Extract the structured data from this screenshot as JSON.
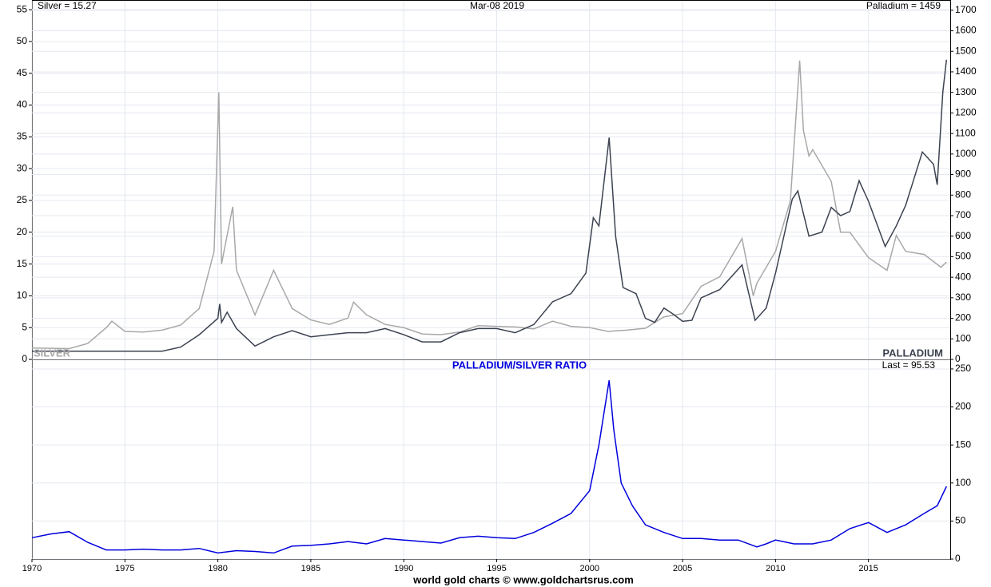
{
  "chart_data": [
    {
      "type": "line",
      "annotations": [
        "Silver = 15.27",
        "Mar-08  2019",
        "Palladium = 1459"
      ],
      "xlim": [
        1970,
        2019.4
      ],
      "ylim": [
        0,
        56.4
      ],
      "yticks": [
        0,
        5,
        10,
        15,
        20,
        25,
        30,
        35,
        40,
        45,
        50,
        55
      ],
      "y2lim": [
        0,
        1746
      ],
      "y2ticks": [
        0,
        100,
        200,
        300,
        400,
        500,
        600,
        700,
        800,
        900,
        1000,
        1100,
        1200,
        1300,
        1400,
        1500,
        1600,
        1700
      ],
      "grid": true,
      "series": [
        {
          "name": "SILVER",
          "color": "#a8a8a8",
          "axis": "y",
          "x": [
            1970,
            1972,
            1973,
            1974,
            1974.3,
            1975,
            1976,
            1977,
            1978,
            1979,
            1979.8,
            1980.05,
            1980.2,
            1980.8,
            1981,
            1982,
            1983,
            1983.5,
            1984,
            1985,
            1986,
            1987,
            1987.3,
            1988,
            1989,
            1990,
            1991,
            1992,
            1993,
            1994,
            1995,
            1996,
            1997,
            1998,
            1999,
            2000,
            2001,
            2002,
            2003,
            2004,
            2005,
            2006,
            2007,
            2008.2,
            2008.8,
            2009,
            2010,
            2010.8,
            2011.3,
            2011.5,
            2011.8,
            2012,
            2013,
            2013.5,
            2014,
            2015,
            2016,
            2016.5,
            2017,
            2018,
            2018.9,
            2019.2
          ],
          "values": [
            1.8,
            1.7,
            2.5,
            5,
            6,
            4.4,
            4.3,
            4.6,
            5.4,
            8,
            17,
            42,
            15,
            24,
            14,
            7,
            14,
            11,
            8,
            6.2,
            5.5,
            6.5,
            9,
            7,
            5.5,
            5,
            4,
            3.9,
            4.3,
            5.3,
            5.2,
            5.1,
            4.8,
            6,
            5.2,
            5,
            4.4,
            4.6,
            4.9,
            6.7,
            7.2,
            11.5,
            13,
            19,
            10,
            12,
            17,
            25,
            47,
            36,
            32,
            33,
            28,
            20,
            20,
            16,
            14,
            19.5,
            17,
            16.5,
            14.5,
            15.3
          ]
        },
        {
          "name": "PALLADIUM",
          "color": "#3c4250",
          "axis": "y2",
          "x": [
            1970,
            1977,
            1978,
            1979,
            1980,
            1980.1,
            1980.2,
            1980.5,
            1981,
            1982,
            1983,
            1984,
            1985,
            1986,
            1987,
            1988,
            1989,
            1990,
            1991,
            1992,
            1993,
            1994,
            1995,
            1996,
            1997,
            1998,
            1999,
            1999.8,
            2000.2,
            2000.5,
            2001.05,
            2001.4,
            2001.8,
            2002.5,
            2003,
            2003.5,
            2004,
            2004.5,
            2005,
            2005.5,
            2006,
            2007,
            2008.2,
            2008.9,
            2009.5,
            2010,
            2010.9,
            2011.2,
            2011.8,
            2012.5,
            2013,
            2013.5,
            2014,
            2014.5,
            2015,
            2015.9,
            2016.5,
            2017,
            2017.9,
            2018.5,
            2018.7,
            2019,
            2019.2
          ],
          "values": [
            40,
            40,
            60,
            120,
            200,
            270,
            180,
            230,
            150,
            65,
            110,
            140,
            110,
            120,
            130,
            130,
            150,
            120,
            85,
            85,
            130,
            150,
            150,
            130,
            170,
            280,
            320,
            420,
            690,
            650,
            1080,
            600,
            350,
            320,
            200,
            180,
            250,
            220,
            185,
            190,
            300,
            340,
            460,
            190,
            250,
            420,
            780,
            820,
            600,
            620,
            740,
            700,
            720,
            870,
            770,
            550,
            650,
            750,
            1010,
            950,
            850,
            1300,
            1459
          ]
        }
      ]
    },
    {
      "type": "line",
      "title": "PALLADIUM/SILVER RATIO",
      "annotations": [
        "Last = 95.53"
      ],
      "xlim": [
        1970,
        2019.4
      ],
      "xticks": [
        1970,
        1975,
        1980,
        1985,
        1990,
        1995,
        2000,
        2005,
        2010,
        2015
      ],
      "ylim": [
        0,
        261.5
      ],
      "yticks": [
        0,
        50,
        100,
        150,
        200,
        250
      ],
      "grid": true,
      "series": [
        {
          "color": "#0000dd",
          "x": [
            1970,
            1971,
            1972,
            1973,
            1974,
            1975,
            1976,
            1977,
            1978,
            1979,
            1980,
            1981,
            1982,
            1983,
            1984,
            1985,
            1986,
            1987,
            1988,
            1989,
            1990,
            1991,
            1992,
            1993,
            1994,
            1995,
            1996,
            1997,
            1998,
            1999,
            2000,
            2000.5,
            2001.05,
            2001.3,
            2001.7,
            2002.3,
            2003,
            2004,
            2005,
            2006,
            2007,
            2008,
            2009,
            2009.5,
            2010,
            2011,
            2012,
            2013,
            2014,
            2015,
            2016,
            2017,
            2018,
            2018.7,
            2019.2
          ],
          "values": [
            28,
            33,
            36,
            22,
            12,
            12,
            13,
            12,
            12,
            14,
            8,
            11,
            10,
            8,
            17,
            18,
            20,
            23,
            20,
            27,
            25,
            23,
            21,
            28,
            30,
            28,
            27,
            35,
            47,
            60,
            90,
            150,
            235,
            170,
            100,
            70,
            45,
            35,
            27,
            27,
            25,
            25,
            16,
            20,
            25,
            20,
            20,
            25,
            40,
            48,
            35,
            45,
            60,
            70,
            95.53
          ]
        }
      ]
    }
  ],
  "source": "world gold charts © www.goldchartsrus.com"
}
